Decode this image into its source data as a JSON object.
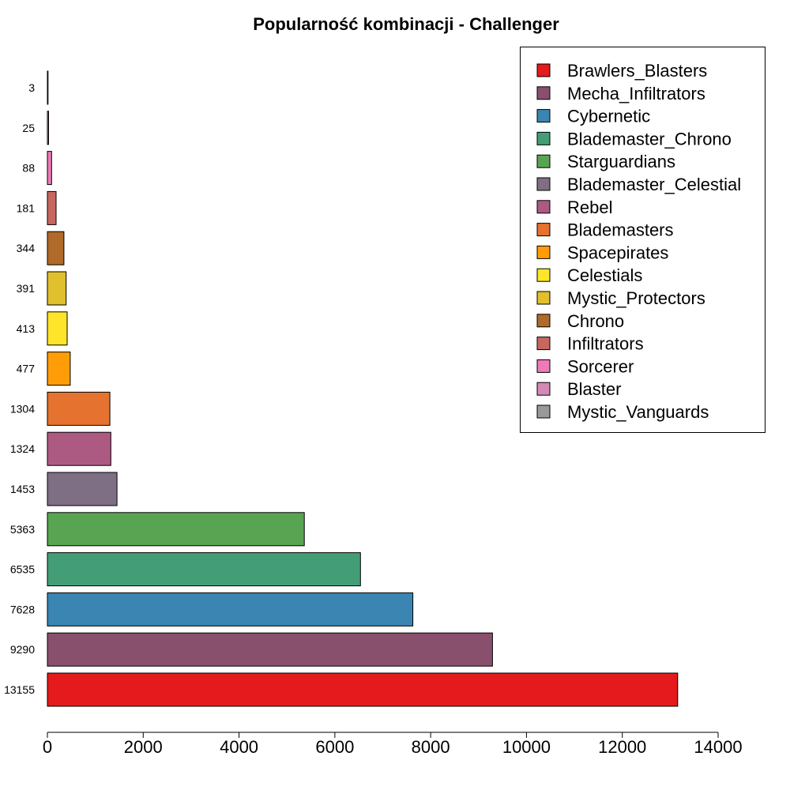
{
  "chart_data": {
    "type": "bar",
    "orientation": "horizontal",
    "title": "Popularność kombinacji - Challenger",
    "xlabel": "",
    "ylabel": "",
    "xlim": [
      0,
      14000
    ],
    "x_ticks": [
      "0",
      "2000",
      "4000",
      "6000",
      "8000",
      "10000",
      "12000",
      "14000"
    ],
    "grid": false,
    "legend_position": "top-right",
    "bars": [
      {
        "category": "Brawlers_Blasters",
        "value": 13155,
        "label": "13155",
        "color": "#E41A1C"
      },
      {
        "category": "Mecha_Infiltrators",
        "value": 9290,
        "label": "9290",
        "color": "#89506D"
      },
      {
        "category": "Cybernetic",
        "value": 7628,
        "label": "7628",
        "color": "#3A85B2"
      },
      {
        "category": "Blademaster_Chrono",
        "value": 6535,
        "label": "6535",
        "color": "#439E77"
      },
      {
        "category": "Starguardians",
        "value": 5363,
        "label": "5363",
        "color": "#59A452"
      },
      {
        "category": "Blademaster_Celestial",
        "value": 1453,
        "label": "1453",
        "color": "#7E6F85"
      },
      {
        "category": "Rebel",
        "value": 1324,
        "label": "1324",
        "color": "#AD5A82"
      },
      {
        "category": "Blademasters",
        "value": 1304,
        "label": "1304",
        "color": "#E5732F"
      },
      {
        "category": "Spacepirates",
        "value": 477,
        "label": "477",
        "color": "#FF9D08"
      },
      {
        "category": "Celestials",
        "value": 413,
        "label": "413",
        "color": "#FFE52A"
      },
      {
        "category": "Mystic_Protectors",
        "value": 391,
        "label": "391",
        "color": "#E0C02D"
      },
      {
        "category": "Chrono",
        "value": 344,
        "label": "344",
        "color": "#B06A29"
      },
      {
        "category": "Infiltrators",
        "value": 181,
        "label": "181",
        "color": "#C76760"
      },
      {
        "category": "Sorcerer",
        "value": 88,
        "label": "88",
        "color": "#EE7BB6"
      },
      {
        "category": "Blaster",
        "value": 25,
        "label": "25",
        "color": "#D48AB4"
      },
      {
        "category": "Mystic_Vanguards",
        "value": 3,
        "label": "3",
        "color": "#999999"
      }
    ]
  }
}
